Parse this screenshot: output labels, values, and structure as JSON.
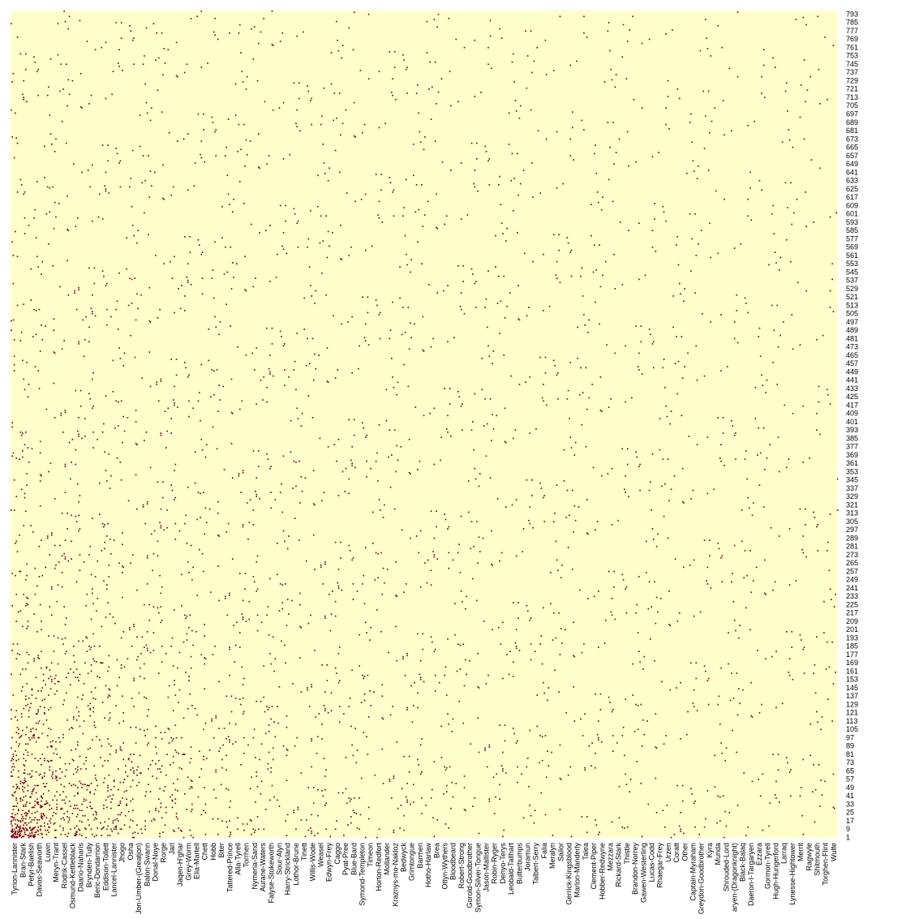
{
  "chart_data": {
    "type": "heatmap",
    "title": "",
    "xlabel": "",
    "ylabel": "",
    "grid": false,
    "legend": "none",
    "n_rows": 796,
    "n_cols": 796,
    "colors": {
      "low": "#ffffcc",
      "high": "#800026"
    },
    "x_tick_labels": [
      "Tyrion-Lannister",
      "Bran-Stark",
      "Petyr-Baelish",
      "Davos-Seaworth",
      "Luwin",
      "Meryn-Trant",
      "Rodrik-Cassel",
      "Osmund-Kettleblack",
      "Daario-Naharis",
      "Brynden-Tully",
      "Beric-Dondarrion",
      "Eddison-Tollett",
      "Lancel-Lannister",
      "Jhogo",
      "Osha",
      "Jon-Umber-(Greatjon)",
      "Balon-Swann",
      "Donal-Noye",
      "Rorge",
      "Jarl",
      "Jaqen-H'ghar",
      "Grey-Worm",
      "Elia-Martell",
      "Chett",
      "Hobb",
      "Biter",
      "Tattered-Prince",
      "Alla-Tyrell",
      "Torrhen",
      "Nymeria-Sand",
      "Aurane-Waters",
      "Falyse-Stokeworth",
      "Sour-Alyn",
      "Harry-Strickland",
      "Lothor-Brune",
      "Tinett",
      "Willis-Wode",
      "Weasel",
      "Edwyn-Frey",
      "Caggo",
      "Pyat-Pree",
      "Blue-Bard",
      "Symond-Templeton",
      "Timeon",
      "Horton-Redfort",
      "Mollander",
      "Kraznys-mo-Nakloz",
      "Bedwyck",
      "Grimtongue",
      "Barmen",
      "Hotho-Harlaw",
      "Brea",
      "Ottyn-Wythers",
      "Bloodbeard",
      "Robert-Strong",
      "Gorold-Goodbrother",
      "Symon-Silver-Tongue",
      "Jason-Mallister",
      "Robin-Ryger",
      "Denyo-Terys",
      "Leobald-Tallhart",
      "Butterbumps",
      "Joramun",
      "Talbert-Serry",
      "Falia",
      "Meralyn",
      "Sailor",
      "Gerrick-Kingsblood",
      "Marlon-Manderly",
      "Talea",
      "Clement-Piper",
      "Hobber-Redwyne",
      "Mezzara",
      "Rickard-Stark",
      "Thistle",
      "Brandon-Norrey",
      "Gawen-Westerling",
      "Lucas-Codd",
      "Rhaegar-Frey",
      "Urzen",
      "Coratt",
      "Other",
      "Captain-Myraham",
      "Greydon-Goodbrother",
      "Kyra",
      "Munda",
      "Shrouded-Lord",
      "aryen-(Dragonknight)",
      "Black-Balaq",
      "Daeron-I-Targaryen",
      "Ezzara",
      "Gormon-Tyrell",
      "Hugh-Hungerford",
      "Larraq",
      "Lynesse-Hightower",
      "Merrit",
      "Ragwyle",
      "Shitmouth",
      "Torghen-Flint",
      "Wulfe"
    ],
    "y_tick_labels": [
      "1",
      "9",
      "17",
      "25",
      "33",
      "41",
      "49",
      "57",
      "65",
      "73",
      "81",
      "89",
      "97",
      "105",
      "113",
      "121",
      "129",
      "137",
      "145",
      "153",
      "161",
      "169",
      "177",
      "185",
      "193",
      "201",
      "209",
      "217",
      "225",
      "233",
      "241",
      "249",
      "257",
      "265",
      "273",
      "281",
      "289",
      "297",
      "305",
      "313",
      "321",
      "329",
      "337",
      "345",
      "353",
      "361",
      "369",
      "377",
      "385",
      "393",
      "401",
      "409",
      "417",
      "425",
      "433",
      "441",
      "449",
      "457",
      "465",
      "473",
      "481",
      "489",
      "497",
      "505",
      "513",
      "521",
      "529",
      "537",
      "545",
      "553",
      "561",
      "569",
      "577",
      "585",
      "593",
      "601",
      "609",
      "617",
      "625",
      "633",
      "641",
      "649",
      "657",
      "665",
      "673",
      "681",
      "689",
      "697",
      "705",
      "713",
      "721",
      "729",
      "737",
      "745",
      "753",
      "761",
      "769",
      "777",
      "785",
      "793"
    ]
  }
}
